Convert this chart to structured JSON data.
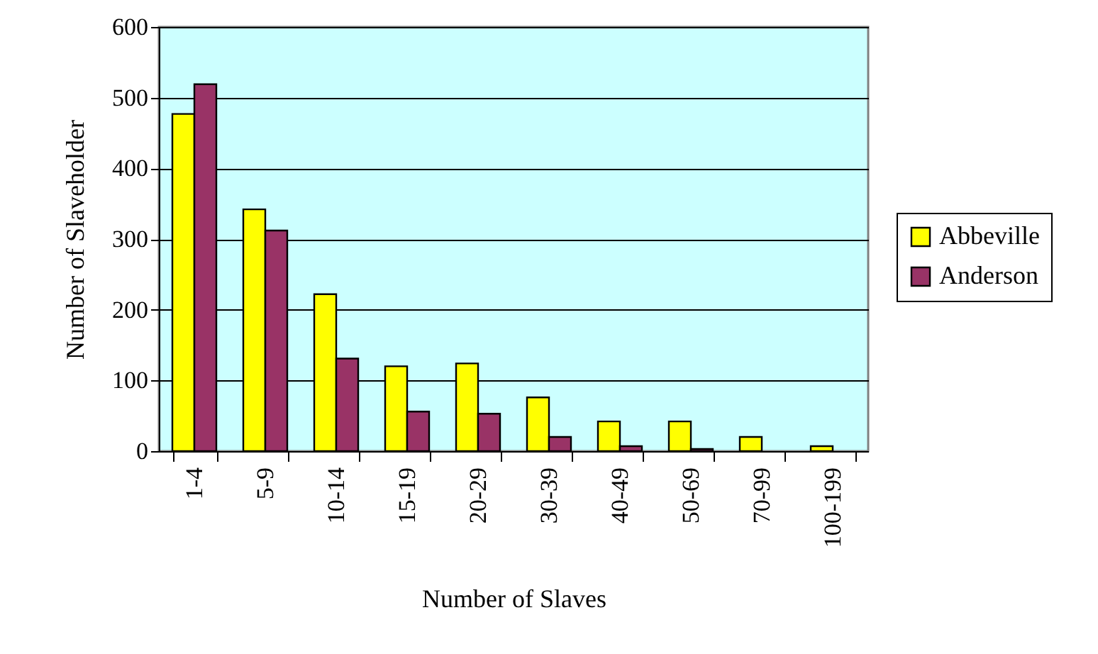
{
  "chart_data": {
    "type": "bar",
    "xlabel": "Number of Slaves",
    "ylabel": "Number of Slaveholder",
    "categories": [
      "1-4",
      "5-9",
      "10-14",
      "15-19",
      "20-29",
      "30-39",
      "40-49",
      "50-69",
      "70-99",
      "100-199"
    ],
    "series": [
      {
        "name": "Abbeville",
        "color": "#ffff00",
        "values": [
          477,
          342,
          222,
          120,
          124,
          76,
          42,
          42,
          20,
          7
        ]
      },
      {
        "name": "Anderson",
        "color": "#993366",
        "values": [
          519,
          312,
          131,
          56,
          53,
          20,
          7,
          3,
          null,
          null
        ]
      }
    ],
    "ylim": [
      0,
      600
    ],
    "yticks": [
      0,
      100,
      200,
      300,
      400,
      500,
      600
    ],
    "grid": "y",
    "legend": "right"
  }
}
